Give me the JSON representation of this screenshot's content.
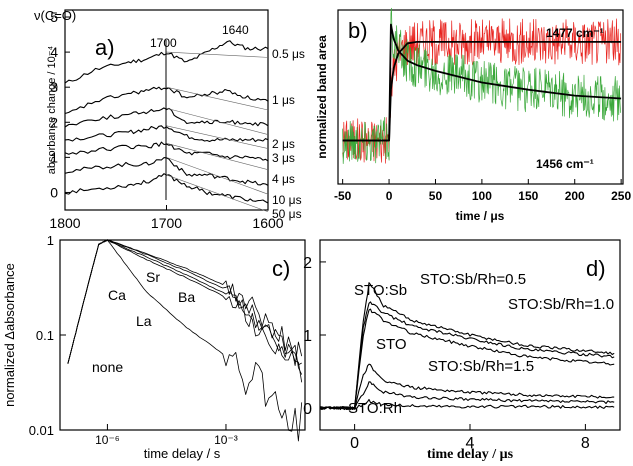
{
  "chart_data": [
    {
      "panel": "a)",
      "type": "line",
      "title": "ν(C=O)",
      "xlabel": "",
      "ylabel": "absorbance change / 10⁻⁴",
      "xlim": [
        1800,
        1600
      ],
      "ylim": [
        -0.5,
        5.2
      ],
      "xticks": [
        "1800",
        "1700",
        "1600"
      ],
      "yticks": [
        "0",
        "1",
        "2",
        "3",
        "4",
        "5"
      ],
      "annotations": [
        "1700",
        "1640"
      ],
      "series": [
        {
          "name": "0.5 μs",
          "x": [
            1800,
            1770,
            1740,
            1720,
            1700,
            1680,
            1660,
            1640,
            1620,
            1600
          ],
          "values": [
            3.1,
            3.5,
            3.7,
            3.8,
            4.0,
            3.7,
            4.0,
            4.3,
            4.1,
            4.1
          ]
        },
        {
          "name": "1 μs",
          "x": [
            1800,
            1770,
            1740,
            1720,
            1700,
            1680,
            1660,
            1640,
            1620,
            1600
          ],
          "values": [
            2.2,
            2.6,
            2.8,
            2.9,
            3.0,
            2.7,
            2.8,
            2.9,
            2.7,
            2.6
          ]
        },
        {
          "name": "2 μs",
          "x": [
            1800,
            1770,
            1740,
            1720,
            1700,
            1680,
            1660,
            1640,
            1620,
            1600
          ],
          "values": [
            1.9,
            2.1,
            2.2,
            2.3,
            2.4,
            2.0,
            2.0,
            2.0,
            2.0,
            1.9
          ]
        },
        {
          "name": "3 μs",
          "x": [
            1800,
            1770,
            1740,
            1720,
            1700,
            1680,
            1660,
            1640,
            1620,
            1600
          ],
          "values": [
            1.5,
            1.6,
            1.7,
            1.8,
            1.9,
            1.6,
            1.5,
            1.5,
            1.5,
            1.5
          ]
        },
        {
          "name": "4 μs",
          "x": [
            1800,
            1770,
            1740,
            1720,
            1700,
            1680,
            1660,
            1640,
            1620,
            1600
          ],
          "values": [
            1.1,
            1.2,
            1.3,
            1.3,
            1.4,
            1.1,
            1.1,
            1.0,
            1.0,
            0.9
          ]
        },
        {
          "name": "10 μs",
          "x": [
            1800,
            1770,
            1740,
            1720,
            1700,
            1680,
            1660,
            1640,
            1620,
            1600
          ],
          "values": [
            0.6,
            0.7,
            0.8,
            0.8,
            1.0,
            0.5,
            0.5,
            0.4,
            0.3,
            0.2
          ]
        },
        {
          "name": "50 μs",
          "x": [
            1800,
            1770,
            1740,
            1720,
            1700,
            1680,
            1660,
            1640,
            1620,
            1600
          ],
          "values": [
            0.0,
            0.1,
            0.2,
            0.3,
            0.5,
            0.2,
            0.0,
            -0.1,
            -0.2,
            -0.3
          ]
        }
      ]
    },
    {
      "panel": "b)",
      "type": "line",
      "xlabel": "time / μs",
      "ylabel": "normalized band area",
      "xlim": [
        -55,
        252
      ],
      "xticks": [
        "-50",
        "0",
        "50",
        "100",
        "150",
        "200",
        "250"
      ],
      "series": [
        {
          "name": "1477 cm⁻¹",
          "color": "#e8231e",
          "x": [
            -50,
            0,
            2,
            5,
            10,
            20,
            30,
            50,
            100,
            150,
            200,
            250
          ],
          "values": [
            0.2,
            0.2,
            0.55,
            0.7,
            0.8,
            0.87,
            0.88,
            0.88,
            0.88,
            0.88,
            0.88,
            0.88
          ]
        },
        {
          "name": "1456 cm⁻¹",
          "color": "#3aa83a",
          "x": [
            -50,
            0,
            2,
            5,
            10,
            20,
            30,
            50,
            100,
            150,
            200,
            250
          ],
          "values": [
            0.2,
            0.2,
            1.0,
            0.9,
            0.82,
            0.75,
            0.72,
            0.68,
            0.6,
            0.55,
            0.51,
            0.49
          ]
        }
      ]
    },
    {
      "panel": "c)",
      "type": "line",
      "xlabel": "time delay / s",
      "ylabel": "normalized Δabsorbance",
      "yscale": "log",
      "ylim": [
        0.01,
        1
      ],
      "yticks": [
        "0.01",
        "0.1",
        "1"
      ],
      "xticks": [
        "10⁻⁶",
        "10⁻³"
      ],
      "series": [
        {
          "name": "Sr",
          "x": [
            1e-07,
            3e-07,
            6e-07,
            1e-06,
            1e-05,
            0.0001,
            0.001,
            0.01,
            0.1
          ],
          "values": [
            0.05,
            0.3,
            0.9,
            1.0,
            0.72,
            0.5,
            0.33,
            0.15,
            0.05
          ]
        },
        {
          "name": "Ba",
          "x": [
            1e-07,
            3e-07,
            6e-07,
            1e-06,
            1e-05,
            0.0001,
            0.001,
            0.01,
            0.1
          ],
          "values": [
            0.05,
            0.3,
            0.9,
            1.0,
            0.7,
            0.47,
            0.3,
            0.13,
            0.045
          ]
        },
        {
          "name": "Ca",
          "x": [
            1e-07,
            3e-07,
            6e-07,
            1e-06,
            1e-05,
            0.0001,
            0.001,
            0.01,
            0.1
          ],
          "values": [
            0.05,
            0.3,
            0.9,
            1.0,
            0.66,
            0.43,
            0.27,
            0.11,
            0.04
          ]
        },
        {
          "name": "La",
          "x": [
            1e-07,
            3e-07,
            6e-07,
            1e-06,
            1e-05,
            0.0001,
            0.001,
            0.01,
            0.1
          ],
          "values": [
            0.05,
            0.3,
            0.9,
            1.0,
            0.62,
            0.4,
            0.25,
            0.1,
            0.035
          ]
        },
        {
          "name": "none",
          "x": [
            1e-07,
            3e-07,
            6e-07,
            1e-06,
            1e-05,
            0.0001,
            0.001,
            0.01,
            0.1
          ],
          "values": [
            0.05,
            0.3,
            0.9,
            1.0,
            0.28,
            0.12,
            0.06,
            0.025,
            0.012
          ]
        }
      ]
    },
    {
      "panel": "d)",
      "type": "line",
      "xlabel": "time delay / μs",
      "ylabel": "",
      "xlim": [
        -1.2,
        9.2
      ],
      "ylim": [
        -0.3,
        2.3
      ],
      "xticks": [
        "0",
        "4",
        "8"
      ],
      "yticks": [
        "0",
        "1",
        "2"
      ],
      "series": [
        {
          "name": "STO:Sb",
          "x": [
            -1.2,
            0,
            0.3,
            0.5,
            0.7,
            1,
            2,
            4,
            6,
            9
          ],
          "values": [
            0,
            0,
            1.2,
            1.7,
            1.6,
            1.4,
            1.2,
            1.0,
            0.85,
            0.75
          ]
        },
        {
          "name": "STO:Sb/Rh=0.5",
          "x": [
            -1.2,
            0,
            0.3,
            0.5,
            0.7,
            1,
            2,
            4,
            6,
            9
          ],
          "values": [
            0,
            0,
            1.1,
            1.45,
            1.4,
            1.3,
            1.12,
            0.95,
            0.8,
            0.7
          ]
        },
        {
          "name": "STO:Sb/Rh=1.0",
          "x": [
            -1.2,
            0,
            0.3,
            0.5,
            0.7,
            1,
            2,
            4,
            6,
            9
          ],
          "values": [
            0,
            0,
            1.0,
            1.35,
            1.3,
            1.2,
            1.02,
            0.85,
            0.7,
            0.6
          ]
        },
        {
          "name": "STO",
          "x": [
            -1.2,
            0,
            0.3,
            0.5,
            0.7,
            1,
            2,
            4,
            6,
            9
          ],
          "values": [
            0,
            0,
            0.45,
            0.6,
            0.5,
            0.38,
            0.28,
            0.22,
            0.18,
            0.15
          ]
        },
        {
          "name": "STO:Sb/Rh=1.5",
          "x": [
            -1.2,
            0,
            0.3,
            0.5,
            0.7,
            1,
            2,
            4,
            6,
            9
          ],
          "values": [
            0,
            0,
            0.2,
            0.35,
            0.3,
            0.22,
            0.15,
            0.12,
            0.1,
            0.08
          ]
        },
        {
          "name": "STO:Rh",
          "x": [
            -1.2,
            0,
            0.3,
            0.5,
            0.7,
            1,
            2,
            4,
            6,
            9
          ],
          "values": [
            0,
            0,
            0.05,
            0.1,
            0.08,
            0.05,
            0.03,
            0.02,
            0.02,
            0.01
          ]
        }
      ]
    }
  ]
}
